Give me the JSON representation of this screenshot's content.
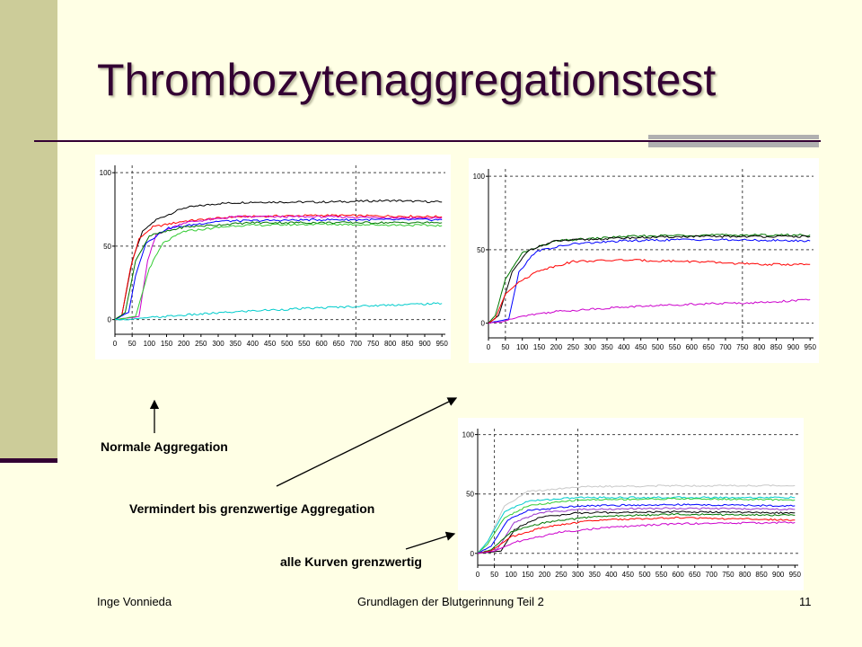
{
  "slide": {
    "title": "Thrombozytenaggregationstest",
    "colors": {
      "background": "#ffffe5",
      "sidebar": "#cccc99",
      "accent": "#330033",
      "gray_bar": "#b0b0b0"
    }
  },
  "labels": {
    "normal": "Normale Aggregation",
    "reduced": "Vermindert bis grenzwertige Aggregation",
    "borderline": "alle Kurven grenzwertig"
  },
  "footer": {
    "author": "Inge Vonnieda",
    "subject": "Grundlagen der Blutgerinnung Teil 2",
    "page": "11"
  },
  "chart_data": [
    {
      "type": "line",
      "xlim": [
        0,
        960
      ],
      "ylim": [
        -10,
        105
      ],
      "yticks": [
        "0",
        "50",
        "100"
      ],
      "xticks": [
        "0",
        "50",
        "100",
        "150",
        "200",
        "250",
        "300",
        "350",
        "400",
        "450",
        "500",
        "550",
        "600",
        "650",
        "700",
        "750",
        "800",
        "850",
        "900",
        "950"
      ],
      "dashed_x": [
        50,
        700
      ],
      "dashed_y": [
        100,
        50,
        0
      ],
      "series": [
        {
          "color": "#000000",
          "values": [
            [
              0,
              0
            ],
            [
              20,
              3
            ],
            [
              50,
              40
            ],
            [
              80,
              60
            ],
            [
              120,
              68
            ],
            [
              200,
              76
            ],
            [
              300,
              79
            ],
            [
              400,
              80
            ],
            [
              600,
              80
            ],
            [
              800,
              81
            ],
            [
              950,
              80
            ]
          ]
        },
        {
          "color": "#ff0000",
          "values": [
            [
              0,
              0
            ],
            [
              20,
              3
            ],
            [
              45,
              35
            ],
            [
              70,
              55
            ],
            [
              110,
              63
            ],
            [
              200,
              67
            ],
            [
              350,
              70
            ],
            [
              600,
              71
            ],
            [
              950,
              70
            ]
          ]
        },
        {
          "color": "#cc00cc",
          "values": [
            [
              0,
              0
            ],
            [
              70,
              2
            ],
            [
              95,
              40
            ],
            [
              120,
              58
            ],
            [
              200,
              66
            ],
            [
              350,
              70
            ],
            [
              600,
              70
            ],
            [
              950,
              69
            ]
          ]
        },
        {
          "color": "#0000ff",
          "values": [
            [
              0,
              0
            ],
            [
              40,
              5
            ],
            [
              60,
              30
            ],
            [
              90,
              52
            ],
            [
              150,
              62
            ],
            [
              300,
              67
            ],
            [
              600,
              68
            ],
            [
              950,
              68
            ]
          ]
        },
        {
          "color": "#007700",
          "values": [
            [
              0,
              0
            ],
            [
              30,
              5
            ],
            [
              60,
              40
            ],
            [
              100,
              57
            ],
            [
              200,
              63
            ],
            [
              400,
              66
            ],
            [
              600,
              66
            ],
            [
              950,
              66
            ]
          ]
        },
        {
          "color": "#33cc33",
          "values": [
            [
              0,
              0
            ],
            [
              60,
              2
            ],
            [
              100,
              35
            ],
            [
              140,
              52
            ],
            [
              200,
              60
            ],
            [
              350,
              64
            ],
            [
              600,
              65
            ],
            [
              950,
              64
            ]
          ]
        },
        {
          "color": "#00cccc",
          "values": [
            [
              0,
              0
            ],
            [
              40,
              0
            ],
            [
              80,
              1
            ],
            [
              200,
              3
            ],
            [
              400,
              6
            ],
            [
              600,
              8
            ],
            [
              800,
              10
            ],
            [
              950,
              11
            ]
          ]
        }
      ]
    },
    {
      "type": "line",
      "xlim": [
        0,
        960
      ],
      "ylim": [
        -10,
        105
      ],
      "yticks": [
        "0",
        "50",
        "100"
      ],
      "xticks": [
        "0",
        "50",
        "100",
        "150",
        "200",
        "250",
        "300",
        "350",
        "400",
        "450",
        "500",
        "550",
        "600",
        "650",
        "700",
        "750",
        "800",
        "850",
        "900",
        "950"
      ],
      "dashed_x": [
        50,
        750
      ],
      "dashed_y": [
        100,
        50,
        0
      ],
      "series": [
        {
          "color": "#007700",
          "values": [
            [
              0,
              0
            ],
            [
              20,
              5
            ],
            [
              50,
              30
            ],
            [
              100,
              48
            ],
            [
              200,
              56
            ],
            [
              400,
              59
            ],
            [
              600,
              60
            ],
            [
              950,
              60
            ]
          ]
        },
        {
          "color": "#000000",
          "values": [
            [
              0,
              0
            ],
            [
              30,
              5
            ],
            [
              70,
              35
            ],
            [
              120,
              50
            ],
            [
              200,
              56
            ],
            [
              400,
              58
            ],
            [
              600,
              59
            ],
            [
              950,
              59
            ]
          ]
        },
        {
          "color": "#0000ff",
          "values": [
            [
              0,
              0
            ],
            [
              60,
              3
            ],
            [
              90,
              35
            ],
            [
              140,
              49
            ],
            [
              250,
              54
            ],
            [
              400,
              56
            ],
            [
              600,
              57
            ],
            [
              950,
              56
            ]
          ]
        },
        {
          "color": "#ff0000",
          "values": [
            [
              0,
              0
            ],
            [
              20,
              3
            ],
            [
              50,
              20
            ],
            [
              90,
              28
            ],
            [
              150,
              36
            ],
            [
              250,
              42
            ],
            [
              400,
              43
            ],
            [
              600,
              42
            ],
            [
              800,
              40
            ],
            [
              950,
              40
            ]
          ]
        },
        {
          "color": "#cc00cc",
          "values": [
            [
              0,
              0
            ],
            [
              40,
              1
            ],
            [
              100,
              5
            ],
            [
              200,
              8
            ],
            [
              400,
              11
            ],
            [
              600,
              13
            ],
            [
              800,
              14
            ],
            [
              950,
              16
            ]
          ]
        }
      ]
    },
    {
      "type": "line",
      "xlim": [
        0,
        960
      ],
      "ylim": [
        -10,
        105
      ],
      "yticks": [
        "0",
        "50",
        "100"
      ],
      "xticks": [
        "0",
        "50",
        "100",
        "150",
        "200",
        "250",
        "300",
        "350",
        "400",
        "450",
        "500",
        "550",
        "600",
        "650",
        "700",
        "750",
        "800",
        "850",
        "900",
        "950"
      ],
      "dashed_x": [
        50,
        300
      ],
      "dashed_y": [
        100,
        50,
        0
      ],
      "series": [
        {
          "color": "#c8c8c8",
          "values": [
            [
              0,
              0
            ],
            [
              30,
              10
            ],
            [
              80,
              40
            ],
            [
              150,
              52
            ],
            [
              300,
              56
            ],
            [
              600,
              57
            ],
            [
              950,
              57
            ]
          ]
        },
        {
          "color": "#00cccc",
          "values": [
            [
              0,
              0
            ],
            [
              30,
              10
            ],
            [
              80,
              35
            ],
            [
              150,
              44
            ],
            [
              300,
              47
            ],
            [
              600,
              47
            ],
            [
              950,
              47
            ]
          ]
        },
        {
          "color": "#33cc33",
          "values": [
            [
              0,
              0
            ],
            [
              30,
              8
            ],
            [
              80,
              30
            ],
            [
              150,
              40
            ],
            [
              300,
              45
            ],
            [
              600,
              46
            ],
            [
              950,
              45
            ]
          ]
        },
        {
          "color": "#0000ff",
          "values": [
            [
              0,
              0
            ],
            [
              40,
              6
            ],
            [
              90,
              28
            ],
            [
              150,
              36
            ],
            [
              300,
              40
            ],
            [
              600,
              41
            ],
            [
              950,
              40
            ]
          ]
        },
        {
          "color": "#9933cc",
          "values": [
            [
              0,
              0
            ],
            [
              60,
              4
            ],
            [
              110,
              26
            ],
            [
              180,
              34
            ],
            [
              300,
              37
            ],
            [
              600,
              38
            ],
            [
              950,
              37
            ]
          ]
        },
        {
          "color": "#000000",
          "values": [
            [
              0,
              0
            ],
            [
              70,
              2
            ],
            [
              110,
              20
            ],
            [
              180,
              30
            ],
            [
              300,
              34
            ],
            [
              600,
              35
            ],
            [
              950,
              34
            ]
          ]
        },
        {
          "color": "#007700",
          "values": [
            [
              0,
              0
            ],
            [
              40,
              3
            ],
            [
              100,
              18
            ],
            [
              200,
              26
            ],
            [
              350,
              31
            ],
            [
              600,
              33
            ],
            [
              950,
              32
            ]
          ]
        },
        {
          "color": "#ff0000",
          "values": [
            [
              0,
              0
            ],
            [
              40,
              2
            ],
            [
              100,
              14
            ],
            [
              200,
              22
            ],
            [
              350,
              28
            ],
            [
              600,
              30
            ],
            [
              950,
              28
            ]
          ]
        },
        {
          "color": "#cc00cc",
          "values": [
            [
              0,
              0
            ],
            [
              50,
              2
            ],
            [
              120,
              10
            ],
            [
              250,
              18
            ],
            [
              400,
              22
            ],
            [
              600,
              25
            ],
            [
              950,
              26
            ]
          ]
        }
      ]
    }
  ]
}
